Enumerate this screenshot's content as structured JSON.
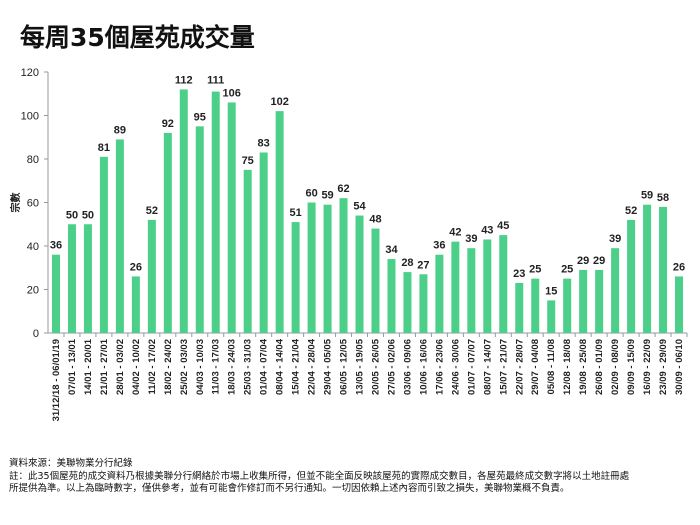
{
  "title": "每周35個屋苑成交量",
  "notes": {
    "source": "資料來源：美聯物業分行紀錄",
    "line1": "註：此35個屋苑的成交資料乃根據美聯分行網絡於市場上收集所得，但並不能全面反映該屋苑的實際成交數目，各屋苑最終成交數字將以土地註冊處",
    "line2": "所提供為準。以上為臨時數字，僅供參考，並有可能會作修訂而不另行通知。一切因依賴上述內容而引致之損失，美聯物業概不負責。"
  },
  "chart_data": {
    "type": "bar",
    "title": "每周35個屋苑成交量",
    "xlabel": "",
    "ylabel": "宗數",
    "ylim": [
      0,
      120
    ],
    "yticks": [
      0,
      20,
      40,
      60,
      80,
      100,
      120
    ],
    "grid": false,
    "color": "#4ccf88",
    "categories": [
      "31/12/18 - 06/01/19",
      "07/01 - 13/01",
      "14/01 - 20/01",
      "21/01 - 27/01",
      "28/01 - 03/02",
      "04/02 - 10/02",
      "11/02 - 17/02",
      "18/02 - 24/02",
      "25/02 - 03/03",
      "04/03 - 10/03",
      "11/03 - 17/03",
      "18/03 - 24/03",
      "25/03 - 31/03",
      "01/04 - 07/04",
      "08/04 - 14/04",
      "15/04 - 21/04",
      "22/04 - 28/04",
      "29/04 - 05/05",
      "06/05 - 12/05",
      "13/05 - 19/05",
      "20/05 - 26/05",
      "27/05 - 02/06",
      "03/06 - 09/06",
      "10/06 - 16/06",
      "17/06 - 23/06",
      "24/06 - 30/06",
      "01/07 - 07/07",
      "08/07 - 14/07",
      "15/07 - 21/07",
      "22/07 - 28/07",
      "29/07 - 04/08",
      "05/08 - 11/08",
      "12/08 - 18/08",
      "19/08 - 25/08",
      "26/08 - 01/09",
      "02/09 - 08/09",
      "09/09 - 15/09",
      "16/09 - 22/09",
      "23/09 - 29/09",
      "30/09 - 06/10"
    ],
    "values": [
      36,
      50,
      50,
      81,
      89,
      26,
      52,
      92,
      112,
      95,
      111,
      106,
      75,
      83,
      102,
      51,
      60,
      59,
      62,
      54,
      48,
      34,
      28,
      27,
      36,
      42,
      39,
      43,
      45,
      23,
      25,
      15,
      25,
      29,
      29,
      39,
      52,
      59,
      58,
      26
    ]
  }
}
